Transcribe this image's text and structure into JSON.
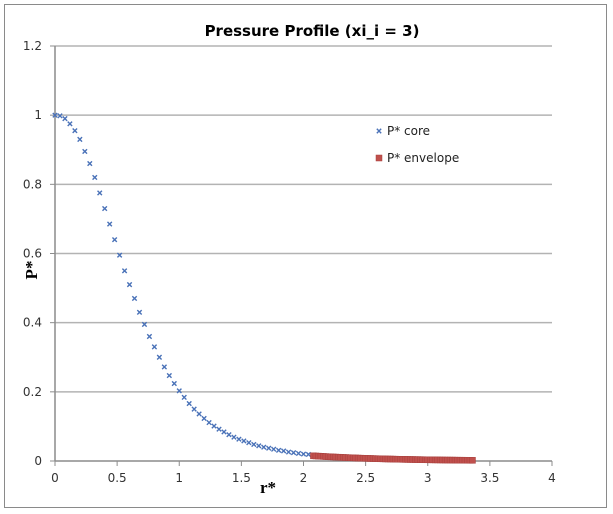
{
  "chart_data": {
    "type": "scatter",
    "title": "Pressure Profile (xi_i = 3)",
    "xlabel": "r*",
    "ylabel": "P*",
    "xlim": [
      0,
      4
    ],
    "ylim": [
      0,
      1.2
    ],
    "xticks": [
      "0",
      "0.5",
      "1",
      "1.5",
      "2",
      "2.5",
      "3",
      "3.5",
      "4"
    ],
    "yticks": [
      "0",
      "0.2",
      "0.4",
      "0.6",
      "0.8",
      "1",
      "1.2"
    ],
    "grid": "horizontal",
    "legend_position": "right",
    "series": [
      {
        "name": "P* core",
        "color": "#4a72b8",
        "marker": "x",
        "x": [
          0,
          0.04,
          0.08,
          0.12,
          0.16,
          0.2,
          0.24,
          0.28,
          0.32,
          0.36,
          0.4,
          0.44,
          0.48,
          0.52,
          0.56,
          0.6,
          0.64,
          0.68,
          0.72,
          0.76,
          0.8,
          0.84,
          0.88,
          0.92,
          0.96,
          1.0,
          1.04,
          1.08,
          1.12,
          1.16,
          1.2,
          1.24,
          1.28,
          1.32,
          1.36,
          1.4,
          1.44,
          1.48,
          1.52,
          1.56,
          1.6,
          1.64,
          1.68,
          1.72,
          1.76,
          1.8,
          1.84,
          1.88,
          1.92,
          1.96,
          2.0,
          2.04,
          2.08
        ],
        "y": [
          1,
          0.998,
          0.99,
          0.975,
          0.955,
          0.93,
          0.895,
          0.86,
          0.82,
          0.775,
          0.73,
          0.685,
          0.64,
          0.595,
          0.55,
          0.51,
          0.47,
          0.43,
          0.395,
          0.36,
          0.33,
          0.3,
          0.272,
          0.247,
          0.224,
          0.203,
          0.184,
          0.166,
          0.15,
          0.136,
          0.123,
          0.111,
          0.101,
          0.092,
          0.084,
          0.076,
          0.069,
          0.063,
          0.058,
          0.053,
          0.048,
          0.044,
          0.04,
          0.037,
          0.034,
          0.031,
          0.029,
          0.026,
          0.024,
          0.022,
          0.02,
          0.019,
          0.017
        ]
      },
      {
        "name": "P* envelope",
        "color": "#c0504d",
        "marker": "square",
        "x": [
          2.08,
          2.1,
          2.12,
          2.14,
          2.16,
          2.18,
          2.2,
          2.22,
          2.24,
          2.26,
          2.28,
          2.3,
          2.32,
          2.34,
          2.36,
          2.38,
          2.4,
          2.42,
          2.44,
          2.46,
          2.48,
          2.5,
          2.52,
          2.54,
          2.56,
          2.58,
          2.6,
          2.62,
          2.64,
          2.66,
          2.68,
          2.7,
          2.72,
          2.74,
          2.76,
          2.78,
          2.8,
          2.82,
          2.84,
          2.86,
          2.88,
          2.9,
          2.92,
          2.94,
          2.96,
          2.98,
          3.0,
          3.02,
          3.04,
          3.06,
          3.08,
          3.1,
          3.12,
          3.14,
          3.16,
          3.18,
          3.2,
          3.22,
          3.24,
          3.26,
          3.28,
          3.3,
          3.32,
          3.34,
          3.36
        ],
        "y": [
          0.015,
          0.0145,
          0.0141,
          0.0137,
          0.0132,
          0.0128,
          0.0124,
          0.012,
          0.0117,
          0.0113,
          0.011,
          0.0106,
          0.0103,
          0.01,
          0.0097,
          0.0094,
          0.0091,
          0.0088,
          0.0085,
          0.0082,
          0.008,
          0.0077,
          0.0075,
          0.0073,
          0.007,
          0.0068,
          0.0066,
          0.0064,
          0.0062,
          0.006,
          0.0058,
          0.0057,
          0.0055,
          0.0053,
          0.0051,
          0.005,
          0.0048,
          0.0047,
          0.0045,
          0.0044,
          0.0043,
          0.0041,
          0.004,
          0.0039,
          0.0038,
          0.0036,
          0.0035,
          0.0034,
          0.0033,
          0.0032,
          0.0031,
          0.003,
          0.0029,
          0.0028,
          0.0027,
          0.0027,
          0.0026,
          0.0025,
          0.0024,
          0.0023,
          0.0023,
          0.0022,
          0.0021,
          0.0021,
          0.002
        ]
      }
    ]
  }
}
